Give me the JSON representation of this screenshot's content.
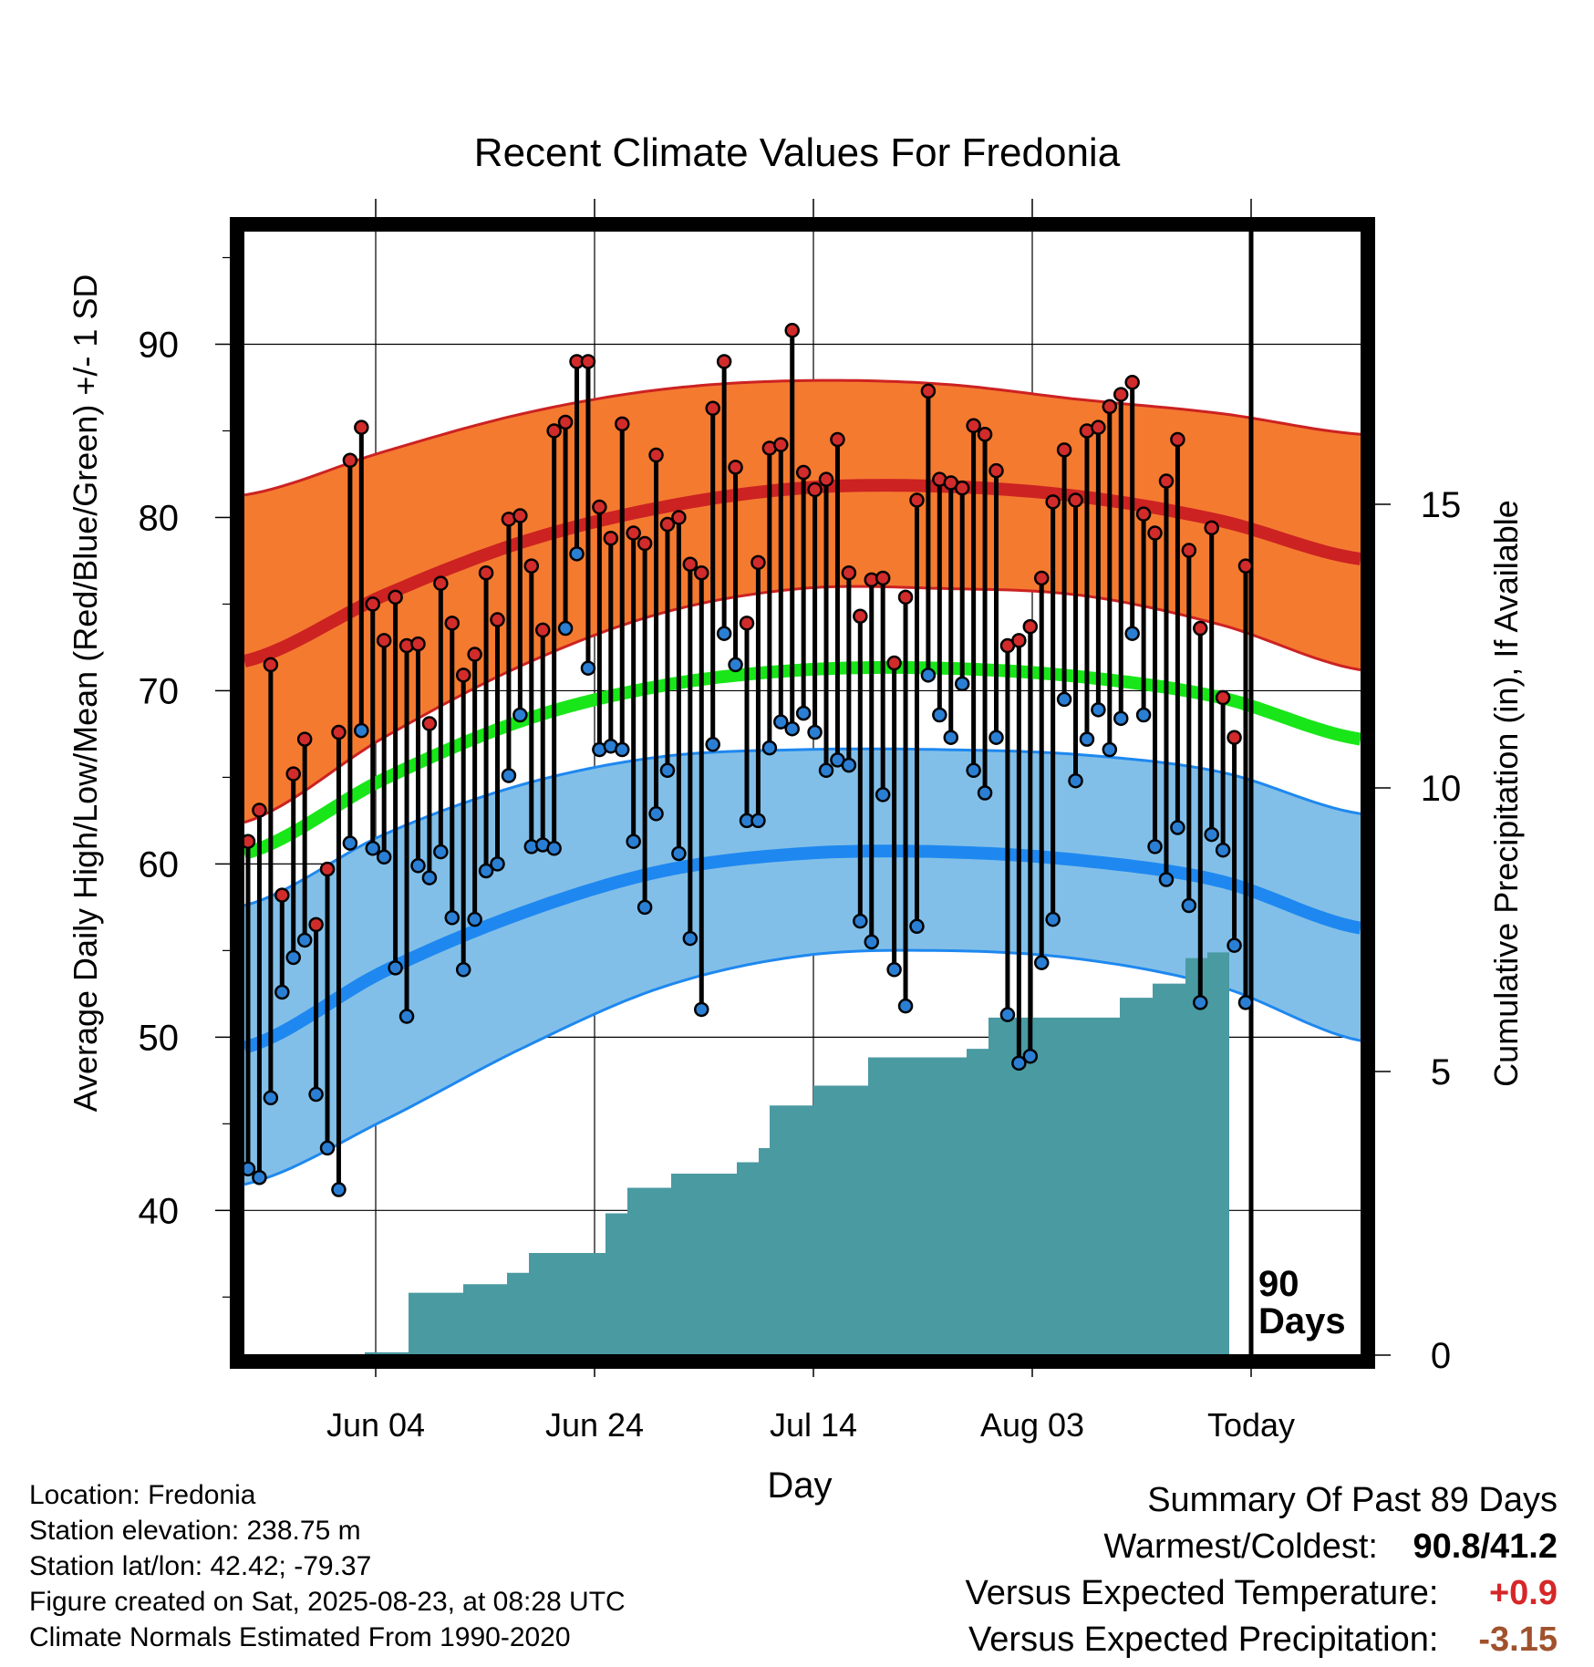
{
  "chart_data": {
    "type": "line",
    "title": "Recent Climate Values For Fredonia",
    "xlabel": "Day",
    "ylabel_left": "Average Daily High/Low/Mean (Red/Blue/Green) +/- 1 SD",
    "ylabel_right": "Cumulative Precipitation (in), If Available",
    "x_ticks": [
      "Jun 04",
      "Jun 24",
      "Jul 14",
      "Aug 03",
      "Today"
    ],
    "y_ticks_left": [
      40,
      50,
      60,
      70,
      80,
      90
    ],
    "y_ticks_right": [
      0,
      5,
      10,
      15
    ],
    "ylim_left": [
      31.7,
      96.5
    ],
    "ylim_right": [
      0,
      15
    ],
    "start_date": "2025-05-23",
    "end_date": "2025-09-02",
    "today_marker": "90 Days",
    "grid": true,
    "normals": {
      "high_mean": [
        71.7,
        75.5,
        78.6,
        80.6,
        81.7,
        81.8,
        81.2,
        79.8,
        77.6
      ],
      "high_upper": [
        81.3,
        83.8,
        86.0,
        87.4,
        87.9,
        87.7,
        86.8,
        86.0,
        84.8
      ],
      "high_lower": [
        62.4,
        67.3,
        71.5,
        74.5,
        75.9,
        75.9,
        75.5,
        73.8,
        71.2
      ],
      "mean": [
        60.6,
        64.9,
        68.3,
        70.3,
        71.2,
        71.3,
        70.8,
        69.6,
        67.2
      ],
      "low_mean": [
        49.4,
        53.8,
        57.2,
        59.6,
        60.6,
        60.7,
        60.2,
        59.0,
        56.3
      ],
      "low_upper": [
        57.6,
        61.7,
        64.6,
        66.2,
        66.6,
        66.6,
        66.3,
        65.3,
        62.9
      ],
      "low_lower": [
        41.5,
        45.2,
        49.4,
        52.9,
        54.7,
        55.0,
        54.5,
        52.9,
        49.8
      ]
    },
    "series": [
      {
        "name": "Daily High",
        "color": "#cc2222",
        "values": [
          61.3,
          63.1,
          71.5,
          58.2,
          65.2,
          67.2,
          56.5,
          59.7,
          67.6,
          83.3,
          85.2,
          75.0,
          72.9,
          75.4,
          72.6,
          72.7,
          68.1,
          76.2,
          73.9,
          70.9,
          72.1,
          76.8,
          74.1,
          79.9,
          80.1,
          77.2,
          73.5,
          85.0,
          85.5,
          89.0,
          89.0,
          80.6,
          78.8,
          85.4,
          79.1,
          78.5,
          83.6,
          79.6,
          80.0,
          77.3,
          76.8,
          86.3,
          89.0,
          82.9,
          73.9,
          77.4,
          84.0,
          84.2,
          90.8,
          82.6,
          81.6,
          82.2,
          84.5,
          76.8,
          74.3,
          76.4,
          76.5,
          71.6,
          75.4,
          81.0,
          87.3,
          82.2,
          82.0,
          81.7,
          85.3,
          84.8,
          82.7,
          72.6,
          72.9,
          73.7,
          76.5,
          80.9,
          83.9,
          81.0,
          85.0,
          85.2,
          86.4,
          87.1,
          87.8,
          80.2,
          79.1,
          82.1,
          84.5,
          78.1,
          73.6,
          79.4,
          69.6,
          67.3,
          77.2
        ]
      },
      {
        "name": "Daily Low",
        "color": "#2a7fd4",
        "values": [
          42.4,
          41.9,
          46.5,
          52.6,
          54.6,
          55.6,
          46.7,
          43.6,
          41.2,
          61.2,
          67.7,
          60.9,
          60.4,
          54.0,
          51.2,
          59.9,
          59.2,
          60.7,
          56.9,
          53.9,
          56.8,
          59.6,
          60.0,
          65.1,
          68.6,
          61.0,
          61.1,
          60.9,
          73.6,
          77.9,
          71.3,
          66.6,
          66.8,
          66.6,
          61.3,
          57.5,
          62.9,
          65.4,
          60.6,
          55.7,
          51.6,
          66.9,
          73.3,
          71.5,
          62.5,
          62.5,
          66.7,
          68.2,
          67.8,
          68.7,
          67.6,
          65.4,
          66.0,
          65.7,
          56.7,
          55.5,
          64.0,
          53.9,
          51.8,
          56.4,
          70.9,
          68.6,
          67.3,
          70.4,
          65.4,
          64.1,
          67.3,
          51.3,
          48.5,
          48.9,
          54.3,
          56.8,
          69.5,
          64.8,
          67.2,
          68.9,
          66.6,
          68.4,
          73.3,
          68.6,
          61.0,
          59.1,
          62.1,
          57.6,
          52.0,
          61.7,
          60.8,
          55.3,
          52.0
        ]
      },
      {
        "name": "Cumulative Precipitation",
        "color": "#4a9aa2",
        "steps": [
          [
            0,
            0
          ],
          [
            11,
            0.05
          ],
          [
            15,
            1.1
          ],
          [
            20,
            1.25
          ],
          [
            24,
            1.45
          ],
          [
            26,
            1.8
          ],
          [
            33,
            2.5
          ],
          [
            35,
            2.95
          ],
          [
            39,
            3.2
          ],
          [
            45,
            3.4
          ],
          [
            47,
            3.65
          ],
          [
            48,
            4.4
          ],
          [
            52,
            4.75
          ],
          [
            57,
            5.25
          ],
          [
            66,
            5.4
          ],
          [
            68,
            5.95
          ],
          [
            80,
            6.3
          ],
          [
            83,
            6.55
          ],
          [
            86,
            7.0
          ],
          [
            88,
            7.1
          ],
          [
            90,
            7.1
          ]
        ]
      }
    ]
  },
  "footer": {
    "location": "Location: Fredonia",
    "elevation": "Station elevation: 238.75 m",
    "latlon": "Station lat/lon: 42.42; -79.37",
    "created": "Figure created on Sat, 2025-08-23, at 08:28 UTC",
    "normals": "Climate Normals Estimated From 1990-2020"
  },
  "summary": {
    "heading": "Summary Of Past 89 Days",
    "warmest_label": "Warmest/Coldest:",
    "warmest_value": "90.8/41.2",
    "temp_label": "Versus Expected Temperature:",
    "temp_value": "+0.9",
    "temp_color": "#d62728",
    "precip_label": "Versus Expected Precipitation:",
    "precip_value": "-3.15",
    "precip_color": "#a0522d"
  },
  "colors": {
    "high_band": "#f47a30",
    "high_line": "#cc2222",
    "low_band": "#82bfe8",
    "low_line": "#1e88f0",
    "mean_line": "#19e619",
    "precip_fill": "#4a9aa2",
    "high_dot": "#d22b2b",
    "low_dot": "#2a7fd4"
  }
}
